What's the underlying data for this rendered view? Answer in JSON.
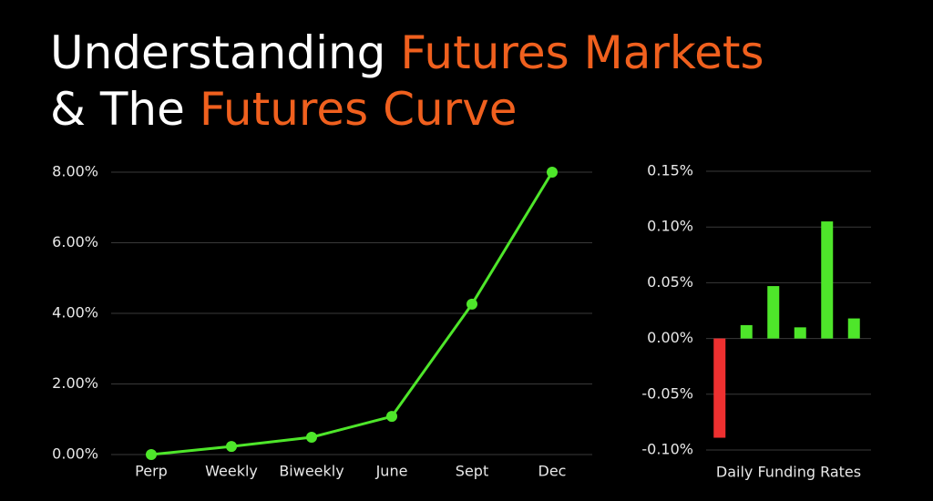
{
  "title": {
    "lines": [
      [
        {
          "text": "Understanding",
          "color": "#ffffff"
        },
        {
          "text": "Futures Markets",
          "color": "#f0601e"
        }
      ],
      [
        {
          "text": "& The",
          "color": "#ffffff"
        },
        {
          "text": "Futures Curve",
          "color": "#f0601e"
        }
      ]
    ]
  },
  "chart_data": [
    {
      "type": "line",
      "categories": [
        "Perp",
        "Weekly",
        "Biweekly",
        "June",
        "Sept",
        "Dec"
      ],
      "values": [
        0,
        0.23,
        0.49,
        1.08,
        4.26,
        8.0
      ],
      "color": "#4ee62a",
      "ylim": [
        0,
        8
      ],
      "yticks": [
        {
          "value": 0,
          "label": "0.00%"
        },
        {
          "value": 2,
          "label": "2.00%"
        },
        {
          "value": 4,
          "label": "4.00%"
        },
        {
          "value": 6,
          "label": "6.00%"
        },
        {
          "value": 8,
          "label": "8.00%"
        }
      ],
      "grid": true
    },
    {
      "type": "bar",
      "xlabel": "Daily Funding Rates",
      "categories": [
        null,
        null,
        null,
        null,
        null,
        null
      ],
      "values": [
        -0.089,
        0.012,
        0.047,
        0.01,
        0.105,
        0.018
      ],
      "colors": [
        "#ee3030",
        "#4ee62a",
        "#4ee62a",
        "#4ee62a",
        "#4ee62a",
        "#4ee62a"
      ],
      "ylim": [
        -0.1,
        0.15
      ],
      "yticks": [
        {
          "value": -0.1,
          "label": "-0.10%"
        },
        {
          "value": -0.05,
          "label": "-0.05%"
        },
        {
          "value": 0,
          "label": "0.00%"
        },
        {
          "value": 0.05,
          "label": "0.05%"
        },
        {
          "value": 0.1,
          "label": "0.10%"
        },
        {
          "value": 0.15,
          "label": "0.15%"
        }
      ],
      "grid": true
    }
  ]
}
